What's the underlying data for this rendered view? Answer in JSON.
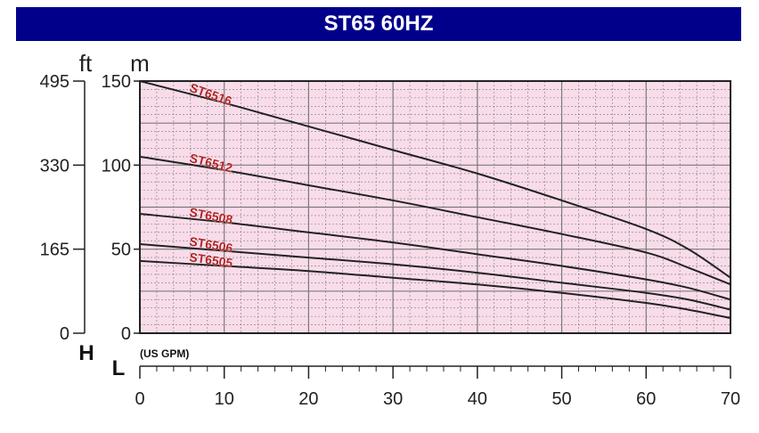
{
  "title": "ST65 60HZ",
  "chart_data": {
    "type": "line",
    "title": "ST65 60HZ",
    "xlabel": "(US GPM)",
    "x_axis_letter": "L",
    "y_axis_letter": "H",
    "y_unit_left": "ft",
    "y_unit_right": "m",
    "xlim": [
      0,
      70
    ],
    "ylim": [
      0,
      150
    ],
    "x_ticks": [
      "0",
      "10",
      "20",
      "30",
      "40",
      "50",
      "60",
      "70"
    ],
    "y_ticks_m": [
      "0",
      "50",
      "100",
      "150"
    ],
    "y_ticks_ft": [
      "0",
      "165",
      "330",
      "495"
    ],
    "grid": true,
    "colors": {
      "background": "#f9dcea",
      "grid": "#7a7a7a",
      "curve": "#222222",
      "label": "#b22222",
      "title_bar": "#00008b"
    },
    "series": [
      {
        "name": "ST6516",
        "x": [
          0,
          10,
          20,
          30,
          40,
          50,
          60,
          65,
          70
        ],
        "y": [
          150,
          137,
          123,
          109,
          95,
          79,
          62,
          50,
          33
        ]
      },
      {
        "name": "ST6512",
        "x": [
          0,
          10,
          20,
          30,
          40,
          50,
          60,
          65,
          70
        ],
        "y": [
          105,
          97,
          88,
          79,
          69,
          59,
          48,
          39,
          29
        ]
      },
      {
        "name": "ST6508",
        "x": [
          0,
          10,
          20,
          30,
          40,
          50,
          60,
          65,
          70
        ],
        "y": [
          71,
          66,
          60,
          54,
          47,
          40,
          32,
          27,
          20
        ]
      },
      {
        "name": "ST6506",
        "x": [
          0,
          10,
          20,
          30,
          40,
          50,
          60,
          65,
          70
        ],
        "y": [
          53,
          49,
          45,
          41,
          36,
          30,
          24,
          20,
          14
        ]
      },
      {
        "name": "ST6505",
        "x": [
          0,
          10,
          20,
          30,
          40,
          50,
          60,
          65,
          70
        ],
        "y": [
          43,
          40,
          37,
          33,
          29,
          24,
          18,
          14,
          9
        ]
      }
    ]
  }
}
